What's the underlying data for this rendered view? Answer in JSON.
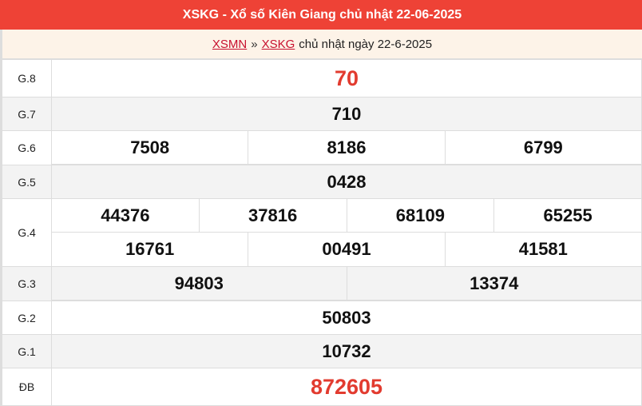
{
  "header": {
    "title": "XSKG - Xổ số Kiên Giang chủ nhật 22-06-2025"
  },
  "breadcrumb": {
    "link1": "XSMN",
    "sep": "»",
    "link2": "XSKG",
    "rest": "chủ nhật ngày 22-6-2025"
  },
  "colors": {
    "header": "#ee4236",
    "special": "#e23b2f"
  },
  "prizes": {
    "g8": {
      "label": "G.8",
      "values": [
        "70"
      ]
    },
    "g7": {
      "label": "G.7",
      "values": [
        "710"
      ]
    },
    "g6": {
      "label": "G.6",
      "values": [
        "7508",
        "8186",
        "6799"
      ]
    },
    "g5": {
      "label": "G.5",
      "values": [
        "0428"
      ]
    },
    "g4": {
      "label": "G.4",
      "values": [
        "44376",
        "37816",
        "68109",
        "65255",
        "16761",
        "00491",
        "41581"
      ]
    },
    "g3": {
      "label": "G.3",
      "values": [
        "94803",
        "13374"
      ]
    },
    "g2": {
      "label": "G.2",
      "values": [
        "50803"
      ]
    },
    "g1": {
      "label": "G.1",
      "values": [
        "10732"
      ]
    },
    "db": {
      "label": "ĐB",
      "values": [
        "872605"
      ]
    }
  }
}
